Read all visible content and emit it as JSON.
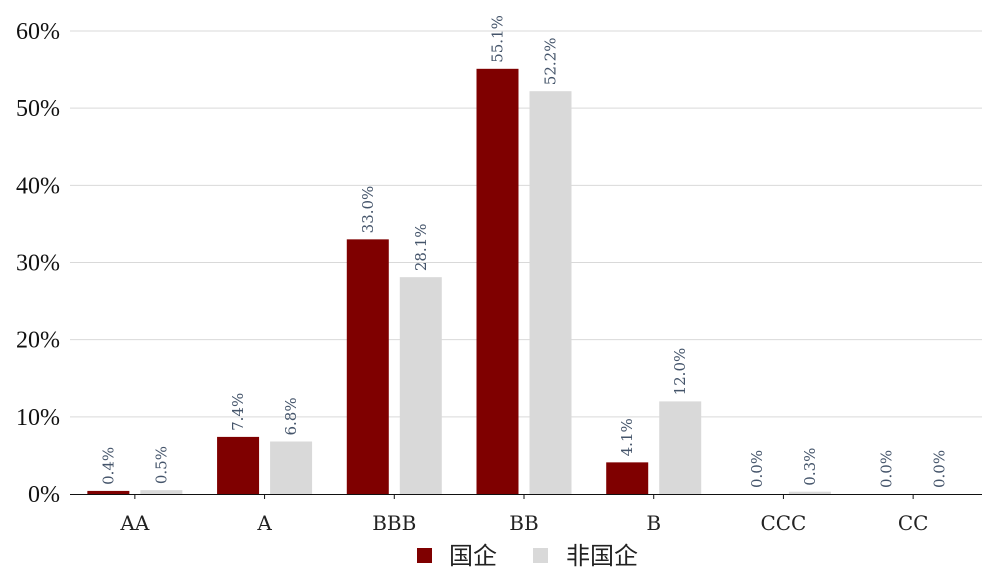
{
  "chart_data": {
    "type": "bar",
    "categories": [
      "AA",
      "A",
      "BBB",
      "BB",
      "B",
      "CCC",
      "CC"
    ],
    "series": [
      {
        "name": "国企",
        "color": "#7f0000",
        "values": [
          0.4,
          7.4,
          33.0,
          55.1,
          4.1,
          0.0,
          0.0
        ],
        "labels": [
          "0.4%",
          "7.4%",
          "33.0%",
          "55.1%",
          "4.1%",
          "0.0%",
          "0.0%"
        ]
      },
      {
        "name": "非国企",
        "color": "#d9d9d9",
        "values": [
          0.5,
          6.8,
          28.1,
          52.2,
          12.0,
          0.3,
          0.0
        ],
        "labels": [
          "0.5%",
          "6.8%",
          "28.1%",
          "52.2%",
          "12.0%",
          "0.3%",
          "0.0%"
        ]
      }
    ],
    "yticks": [
      "0%",
      "10%",
      "20%",
      "30%",
      "40%",
      "50%",
      "60%"
    ],
    "ylim": [
      0,
      60
    ],
    "grid": true,
    "legend_position": "bottom"
  }
}
